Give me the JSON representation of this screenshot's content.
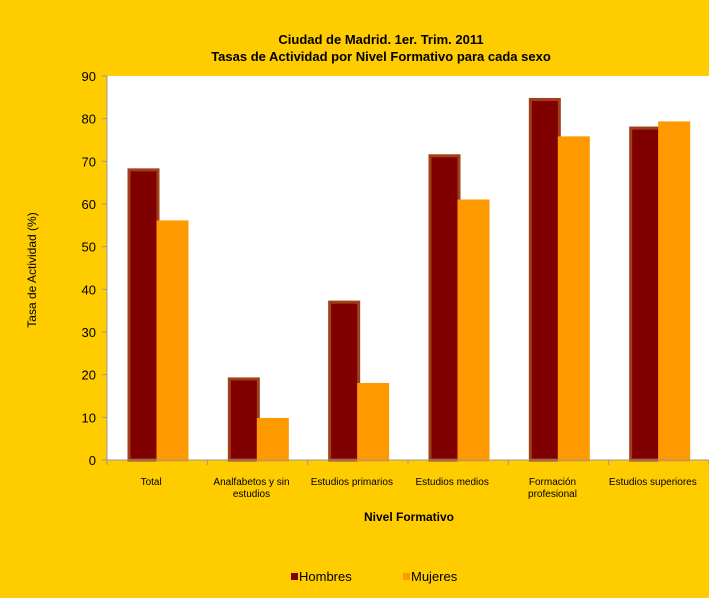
{
  "chart_data": {
    "type": "bar",
    "title": "Ciudad de Madrid. 1er. Trim. 2011",
    "subtitle": "Tasas de Actividad por Nivel Formativo para cada sexo",
    "xlabel": "Nivel Formativo",
    "ylabel": "Tasa de Actividad (%)",
    "ylim": [
      0,
      90
    ],
    "yticks": [
      0,
      10,
      20,
      30,
      40,
      50,
      60,
      70,
      80,
      90
    ],
    "grid": false,
    "legend": "bottom",
    "categories": [
      [
        "Total"
      ],
      [
        "Analfabetos y sin",
        "estudios"
      ],
      [
        "Estudios primarios"
      ],
      [
        "Estudios medios"
      ],
      [
        "Formación",
        "profesional"
      ],
      [
        "Estudios superiores"
      ]
    ],
    "series": [
      {
        "name": "Hombres",
        "color": "#800000",
        "border": "#a0401a",
        "values": [
          68.0,
          19.0,
          37.0,
          71.3,
          84.5,
          77.8
        ]
      },
      {
        "name": "Mujeres",
        "color": "#ff9900",
        "border": "#ff9900",
        "values": [
          55.8,
          9.5,
          17.7,
          60.7,
          75.5,
          79.0
        ]
      }
    ],
    "colors": {
      "background": "#ffcc00",
      "plot_background": "#ffffff",
      "axis": "#999999"
    }
  }
}
